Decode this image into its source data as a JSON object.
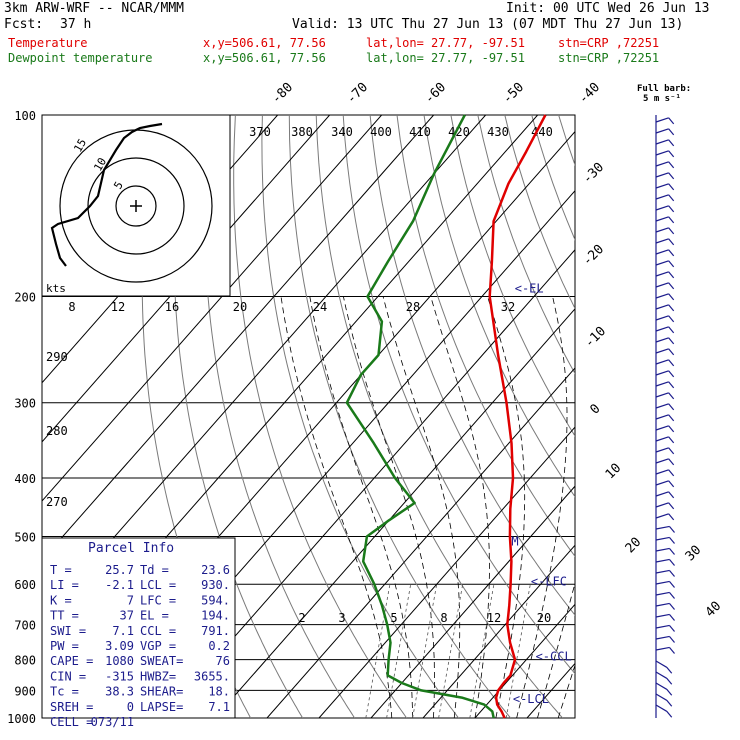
{
  "header": {
    "model": "3km ARW-WRF -- NCAR/MMM",
    "init": "Init: 00 UTC Wed 26 Jun 13",
    "fcst_label": "Fcst:",
    "fcst_value": "37 h",
    "valid": "Valid: 13 UTC Thu 27 Jun 13 (07 MDT Thu 27 Jun 13)",
    "line_temp": {
      "name": "Temperature",
      "xy": "x,y=506.61, 77.56",
      "latlon": "lat,lon= 27.77, -97.51",
      "stn": "stn=CRP ,72251"
    },
    "line_dew": {
      "name": "Dewpoint temperature",
      "xy": "x,y=506.61, 77.56",
      "latlon": "lat,lon= 27.77, -97.51",
      "stn": "stn=CRP ,72251"
    }
  },
  "colors": {
    "temperature": "#e00000",
    "dewpoint": "#1a7a1a",
    "barbs": "#1c1c8c"
  },
  "wind_header": {
    "line1": "Full barb:",
    "line2": "5 m s⁻¹"
  },
  "parcel": {
    "title": "Parcel Info",
    "rows": [
      {
        "l": "T   =",
        "lv": "25.7",
        "r": "Td =",
        "rv": "23.6"
      },
      {
        "l": "LI  =",
        "lv": "-2.1",
        "r": "LCL =",
        "rv": "930."
      },
      {
        "l": "K   =",
        "lv": "7",
        "r": "LFC =",
        "rv": "594."
      },
      {
        "l": "TT  =",
        "lv": "37",
        "r": "EL  =",
        "rv": "194."
      },
      {
        "l": "SWI =",
        "lv": "7.1",
        "r": "CCL =",
        "rv": "791."
      },
      {
        "l": "PW  =",
        "lv": "3.09",
        "r": "VGP =",
        "rv": "0.2"
      },
      {
        "l": "CAPE =",
        "lv": "1080",
        "r": "SWEAT=",
        "rv": "76"
      },
      {
        "l": "CIN  =",
        "lv": "-315",
        "r": "HWBZ=",
        "rv": "3655."
      },
      {
        "l": "Tc =",
        "lv": "38.3",
        "r": "SHEAR=",
        "rv": "18."
      },
      {
        "l": "SREH =",
        "lv": "0",
        "r": "LAPSE=",
        "rv": "7.1"
      },
      {
        "l": "CELL =",
        "lv": "073/11",
        "r": "",
        "rv": ""
      }
    ]
  },
  "hodograph": {
    "label_kts": "kts",
    "ring_labels": [
      "5",
      "10",
      "15"
    ]
  },
  "chart_data": {
    "type": "skew-t",
    "y_label_values": [
      100,
      200,
      300,
      400,
      500,
      600,
      700,
      800,
      900,
      1000
    ],
    "y_scale": "log-pressure (hPa)",
    "isotherm_labels": [
      "-80",
      "-70",
      "-60",
      "-50",
      "-40",
      "-30",
      "-20",
      "-10",
      "0",
      "10",
      "20",
      "30",
      "40"
    ],
    "theta_labels": [
      "370",
      "380",
      "340",
      "400",
      "410",
      "420",
      "430",
      "440"
    ],
    "theta_left_labels": [
      "290",
      "280",
      "270"
    ],
    "mixing_ratio_labels_top": [
      "8",
      "12",
      "16",
      "20",
      "24",
      "28",
      "32"
    ],
    "mixing_ratio_labels_bottom": [
      "2",
      "3",
      "5",
      "8",
      "12",
      "20"
    ],
    "level_annotations": [
      {
        "text": "<-EL",
        "p": 194
      },
      {
        "text": "<-LFC",
        "p": 594
      },
      {
        "text": "<-CCL",
        "p": 791
      },
      {
        "text": "<-LCL",
        "p": 930
      },
      {
        "text": "M",
        "p": 510
      }
    ],
    "temperature": [
      {
        "p": 1000,
        "t": 25.7
      },
      {
        "p": 975,
        "t": 24.0
      },
      {
        "p": 950,
        "t": 22.0
      },
      {
        "p": 925,
        "t": 20.6
      },
      {
        "p": 900,
        "t": 19.8
      },
      {
        "p": 875,
        "t": 19.6
      },
      {
        "p": 850,
        "t": 19.6
      },
      {
        "p": 800,
        "t": 17.8
      },
      {
        "p": 750,
        "t": 14.0
      },
      {
        "p": 700,
        "t": 10.4
      },
      {
        "p": 650,
        "t": 7.5
      },
      {
        "p": 600,
        "t": 4.2
      },
      {
        "p": 550,
        "t": 0.5
      },
      {
        "p": 500,
        "t": -4.0
      },
      {
        "p": 450,
        "t": -8.6
      },
      {
        "p": 400,
        "t": -13.3
      },
      {
        "p": 350,
        "t": -19.5
      },
      {
        "p": 300,
        "t": -27.3
      },
      {
        "p": 250,
        "t": -37.0
      },
      {
        "p": 200,
        "t": -48.5
      },
      {
        "p": 175,
        "t": -54.0
      },
      {
        "p": 150,
        "t": -60.5
      },
      {
        "p": 130,
        "t": -64.0
      },
      {
        "p": 115,
        "t": -66.0
      },
      {
        "p": 100,
        "t": -68.5
      }
    ],
    "dewpoint": [
      {
        "p": 1000,
        "t": 23.6
      },
      {
        "p": 975,
        "t": 22.2
      },
      {
        "p": 950,
        "t": 19.5
      },
      {
        "p": 925,
        "t": 14.0
      },
      {
        "p": 900,
        "t": 5.0
      },
      {
        "p": 875,
        "t": 0.0
      },
      {
        "p": 850,
        "t": -4.0
      },
      {
        "p": 800,
        "t": -6.5
      },
      {
        "p": 750,
        "t": -9.0
      },
      {
        "p": 700,
        "t": -12.7
      },
      {
        "p": 650,
        "t": -17.0
      },
      {
        "p": 600,
        "t": -22.0
      },
      {
        "p": 550,
        "t": -28.0
      },
      {
        "p": 500,
        "t": -31.5
      },
      {
        "p": 470,
        "t": -30.0
      },
      {
        "p": 440,
        "t": -28.0
      },
      {
        "p": 400,
        "t": -36.0
      },
      {
        "p": 350,
        "t": -46.0
      },
      {
        "p": 300,
        "t": -58.0
      },
      {
        "p": 270,
        "t": -60.0
      },
      {
        "p": 250,
        "t": -60.0
      },
      {
        "p": 220,
        "t": -65.0
      },
      {
        "p": 200,
        "t": -72.0
      },
      {
        "p": 175,
        "t": -74.0
      },
      {
        "p": 150,
        "t": -76.0
      },
      {
        "p": 125,
        "t": -80.0
      },
      {
        "p": 100,
        "t": -84.0
      }
    ]
  }
}
